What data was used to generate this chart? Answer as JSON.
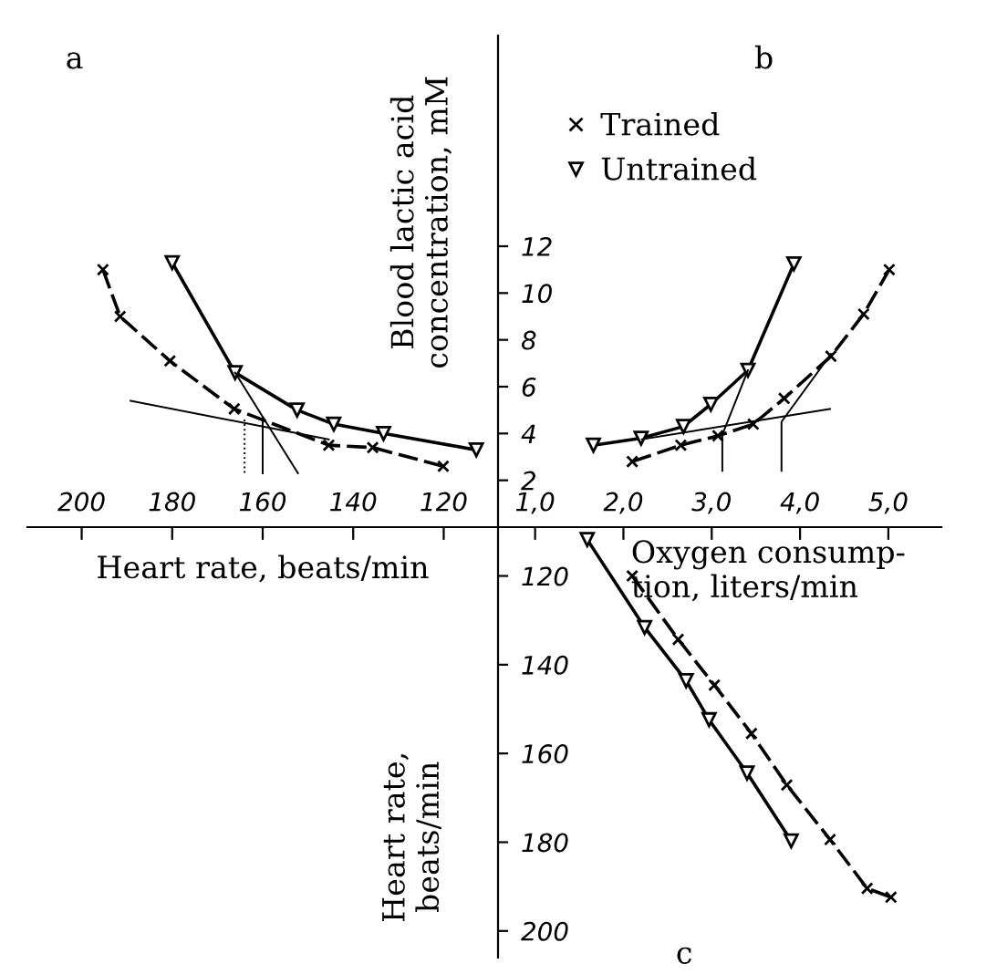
{
  "chart_data": [
    {
      "type": "line",
      "title": "a",
      "xlabel": "Heart rate, beats/min",
      "xlim": [
        212,
        108
      ],
      "xticks": [
        200,
        180,
        160,
        140,
        120
      ],
      "ylim": [
        0,
        21
      ],
      "tick_labels": "x",
      "series": [
        {
          "color": "#000000",
          "marker": "triangle",
          "line_style": "solid",
          "x": [
            180,
            166.1,
            152.4,
            144.3,
            133.3,
            112.8
          ],
          "values": [
            11.3,
            6.6,
            5.0,
            4.4,
            4.0,
            3.3
          ]
        },
        {
          "color": "#000000",
          "marker": "cross",
          "line_style": "dashed",
          "x": [
            195.3,
            191.5,
            180.5,
            166.3,
            145.4,
            135.7,
            120.1
          ],
          "values": [
            11.0,
            9.0,
            7.1,
            5.05,
            3.5,
            3.4,
            2.6
          ]
        },
        {
          "color": "#000000",
          "marker": "none",
          "line_style": "solid",
          "x": [
            189.2,
            145.4
          ],
          "values": [
            5.4,
            3.75
          ]
        },
        {
          "color": "#000000",
          "marker": "none",
          "line_style": "solid",
          "x": [
            166.1,
            152.2
          ],
          "values": [
            6.6,
            2.3
          ]
        },
        {
          "color": "#000000",
          "marker": "none",
          "line_style": "dotted",
          "x": [
            164.0,
            164.0
          ],
          "values": [
            4.6,
            2.3
          ]
        },
        {
          "color": "#000000",
          "marker": "none",
          "line_style": "solid",
          "x": [
            160.0,
            160.0
          ],
          "values": [
            4.7,
            2.3
          ]
        }
      ]
    },
    {
      "type": "line",
      "title": "b",
      "ylabel": "Blood lactic acid\nconcentration, mM",
      "xlim": [
        0.58,
        5.6
      ],
      "xticks": [
        {
          "value": 1,
          "label": "1,0"
        },
        {
          "value": 2,
          "label": "2,0"
        },
        {
          "value": 3,
          "label": "3,0"
        },
        {
          "value": 4,
          "label": "4,0"
        },
        {
          "value": 5,
          "label": "5,0"
        }
      ],
      "ylim": [
        0,
        21
      ],
      "yticks": [
        2,
        4,
        6,
        8,
        10,
        12
      ],
      "legend": "top left",
      "series": [
        {
          "name": "Trained",
          "color": "#000000",
          "marker": "cross",
          "line_style": "dashed",
          "x": [
            2.1,
            2.65,
            3.07,
            3.47,
            3.82,
            4.35,
            4.72,
            5.01
          ],
          "values": [
            2.8,
            3.5,
            3.9,
            4.4,
            5.5,
            7.3,
            9.1,
            11.0
          ]
        },
        {
          "name": "Untrained",
          "color": "#000000",
          "marker": "triangle",
          "line_style": "solid",
          "x": [
            1.66,
            2.2,
            2.68,
            2.99,
            3.41,
            3.93
          ],
          "values": [
            3.5,
            3.8,
            4.3,
            5.25,
            6.7,
            11.25
          ]
        },
        {
          "color": "#000000",
          "marker": "none",
          "line_style": "solid",
          "x": [
            2.21,
            4.34
          ],
          "values": [
            3.75,
            5.05
          ]
        },
        {
          "color": "#000000",
          "marker": "none",
          "line_style": "solid",
          "x": [
            3.41,
            3.12,
            3.12
          ],
          "values": [
            6.7,
            3.95,
            2.4
          ]
        },
        {
          "color": "#000000",
          "marker": "none",
          "line_style": "solid",
          "x": [
            4.35,
            3.79,
            3.79
          ],
          "values": [
            7.4,
            4.5,
            2.4
          ]
        }
      ]
    },
    {
      "type": "line",
      "title": "c",
      "xlabel": "Oxygen consump-\ntion, liters/min",
      "ylabel": "Heart rate,\nbeats/min",
      "xlim": [
        0.58,
        5.6
      ],
      "ylim": [
        206,
        109
      ],
      "yticks": [
        120,
        140,
        160,
        180,
        200
      ],
      "tick_labels": "y",
      "series": [
        {
          "color": "#000000",
          "marker": "triangle",
          "line_style": "solid",
          "x": [
            1.59,
            2.24,
            2.71,
            2.97,
            3.4,
            3.9
          ],
          "values": [
            111.8,
            131.6,
            143.6,
            152.4,
            164.4,
            179.7
          ]
        },
        {
          "color": "#000000",
          "marker": "cross",
          "line_style": "dashed",
          "x": [
            2.1,
            2.62,
            3.03,
            3.45,
            3.85,
            4.34,
            4.76,
            5.03
          ],
          "values": [
            120,
            134.3,
            144.6,
            155.5,
            167.1,
            179.4,
            190.4,
            192.4
          ]
        }
      ]
    }
  ]
}
